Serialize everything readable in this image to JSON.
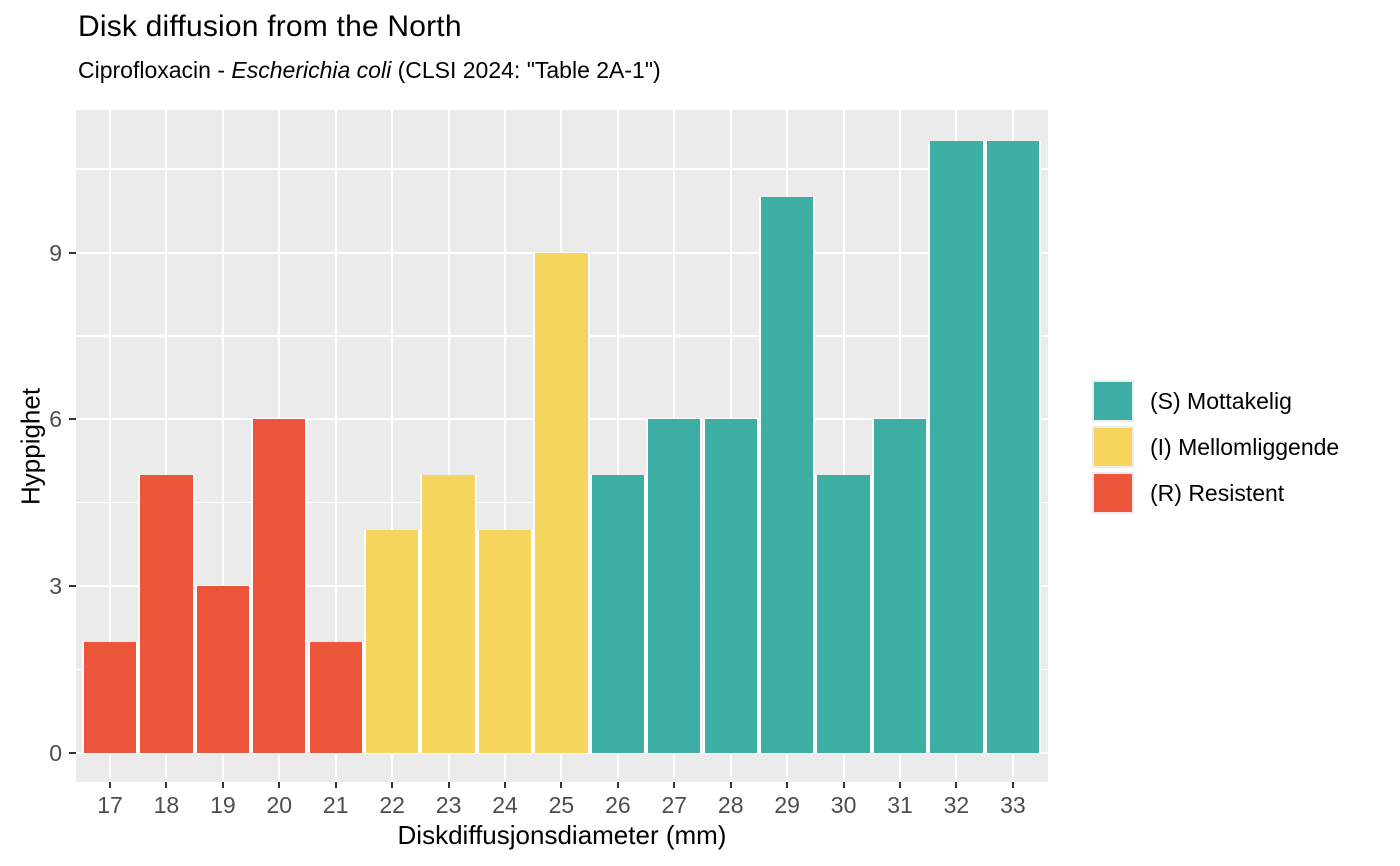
{
  "header": {
    "title": "Disk diffusion from the North",
    "subtitle_prefix": "Ciprofloxacin - ",
    "subtitle_italic": "Escherichia coli",
    "subtitle_suffix": " (CLSI 2024: \"Table 2A-1\")"
  },
  "chart_data": {
    "type": "bar",
    "categories": [
      17,
      18,
      19,
      20,
      21,
      22,
      23,
      24,
      25,
      26,
      27,
      28,
      29,
      30,
      31,
      32,
      33
    ],
    "values": [
      2,
      5,
      3,
      6,
      2,
      4,
      5,
      4,
      9,
      5,
      6,
      6,
      10,
      5,
      6,
      11,
      11
    ],
    "interpretations": [
      "R",
      "R",
      "R",
      "R",
      "R",
      "I",
      "I",
      "I",
      "I",
      "S",
      "S",
      "S",
      "S",
      "S",
      "S",
      "S",
      "S"
    ],
    "series_colors": {
      "S": "#3CAEA3",
      "I": "#F6D55C",
      "R": "#ED553B"
    },
    "title": "Disk diffusion from the North",
    "xlabel": "Diskdiffusjonsdiameter (mm)",
    "ylabel": "Hyppighet",
    "yticks": [
      0,
      3,
      6,
      9
    ],
    "minor_yticks": [
      1.5,
      4.5,
      7.5,
      10.5
    ],
    "ylim": [
      -0.55,
      11.55
    ],
    "grid": true,
    "panel_background": "#EBEBEB",
    "gridline_color": "#FFFFFF",
    "legend_position": "right"
  },
  "legend": {
    "items": [
      {
        "label": "(S) Mottakelig",
        "color": "#3CAEA3"
      },
      {
        "label": "(I) Mellomliggende",
        "color": "#F6D55C"
      },
      {
        "label": "(R) Resistent",
        "color": "#ED553B"
      }
    ]
  }
}
